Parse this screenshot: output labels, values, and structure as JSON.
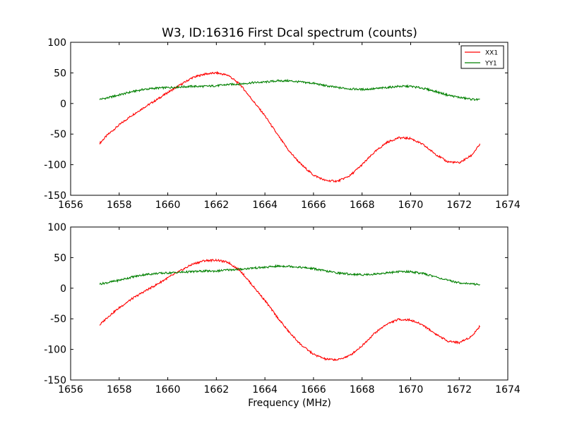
{
  "figure": {
    "title": "W3, ID:16316 First Dcal spectrum (counts)",
    "xlabel": "Frequency (MHz)"
  },
  "chart_data": [
    {
      "type": "line",
      "title": "W3, ID:16316 First Dcal spectrum (counts)",
      "xlabel": "",
      "ylabel": "",
      "xlim": [
        1656,
        1674
      ],
      "ylim": [
        -150,
        100
      ],
      "xticks": [
        1656,
        1658,
        1660,
        1662,
        1664,
        1666,
        1668,
        1670,
        1672,
        1674
      ],
      "yticks": [
        -150,
        -100,
        -50,
        0,
        50,
        100
      ],
      "grid": false,
      "legend": "top-right",
      "x": [
        1657.2,
        1657.5,
        1658.0,
        1658.5,
        1659.0,
        1659.5,
        1660.0,
        1660.5,
        1661.0,
        1661.5,
        1662.0,
        1662.5,
        1663.0,
        1663.5,
        1664.0,
        1664.5,
        1665.0,
        1665.5,
        1666.0,
        1666.5,
        1667.0,
        1667.5,
        1668.0,
        1668.5,
        1669.0,
        1669.5,
        1670.0,
        1670.5,
        1671.0,
        1671.5,
        1672.0,
        1672.5,
        1672.85
      ],
      "series": [
        {
          "name": "XX1",
          "color": "#ff0000",
          "values": [
            -65,
            -52,
            -35,
            -20,
            -7,
            5,
            18,
            30,
            42,
            48,
            50,
            46,
            30,
            5,
            -20,
            -50,
            -78,
            -100,
            -117,
            -126,
            -127,
            -118,
            -100,
            -80,
            -64,
            -56,
            -57,
            -67,
            -82,
            -95,
            -97,
            -85,
            -67
          ]
        },
        {
          "name": "YY1",
          "color": "#008000",
          "values": [
            7,
            9,
            14,
            19,
            23,
            25,
            26,
            27,
            28,
            28,
            29,
            31,
            32,
            34,
            35,
            37,
            37,
            35,
            33,
            29,
            26,
            24,
            23,
            24,
            26,
            28,
            28,
            25,
            20,
            14,
            10,
            7,
            6
          ]
        }
      ]
    },
    {
      "type": "line",
      "title": "",
      "xlabel": "Frequency (MHz)",
      "ylabel": "",
      "xlim": [
        1656,
        1674
      ],
      "ylim": [
        -150,
        100
      ],
      "xticks": [
        1656,
        1658,
        1660,
        1662,
        1664,
        1666,
        1668,
        1670,
        1672,
        1674
      ],
      "yticks": [
        -150,
        -100,
        -50,
        0,
        50,
        100
      ],
      "grid": false,
      "legend": "none",
      "x": [
        1657.2,
        1657.5,
        1658.0,
        1658.5,
        1659.0,
        1659.5,
        1660.0,
        1660.5,
        1661.0,
        1661.5,
        1662.0,
        1662.5,
        1663.0,
        1663.5,
        1664.0,
        1664.5,
        1665.0,
        1665.5,
        1666.0,
        1666.5,
        1667.0,
        1667.5,
        1668.0,
        1668.5,
        1669.0,
        1669.5,
        1670.0,
        1670.5,
        1671.0,
        1671.5,
        1672.0,
        1672.5,
        1672.85
      ],
      "series": [
        {
          "name": "XX1",
          "color": "#ff0000",
          "values": [
            -60,
            -48,
            -32,
            -18,
            -6,
            5,
            17,
            28,
            39,
            45,
            46,
            42,
            28,
            4,
            -20,
            -47,
            -72,
            -93,
            -108,
            -116,
            -117,
            -110,
            -94,
            -74,
            -59,
            -51,
            -52,
            -60,
            -74,
            -86,
            -89,
            -79,
            -62
          ]
        },
        {
          "name": "YY1",
          "color": "#008000",
          "values": [
            7,
            9,
            13,
            18,
            22,
            24,
            25,
            26,
            27,
            28,
            28,
            30,
            31,
            33,
            34,
            36,
            36,
            34,
            32,
            28,
            25,
            23,
            22,
            23,
            25,
            27,
            27,
            24,
            19,
            13,
            9,
            7,
            6
          ]
        }
      ]
    }
  ]
}
